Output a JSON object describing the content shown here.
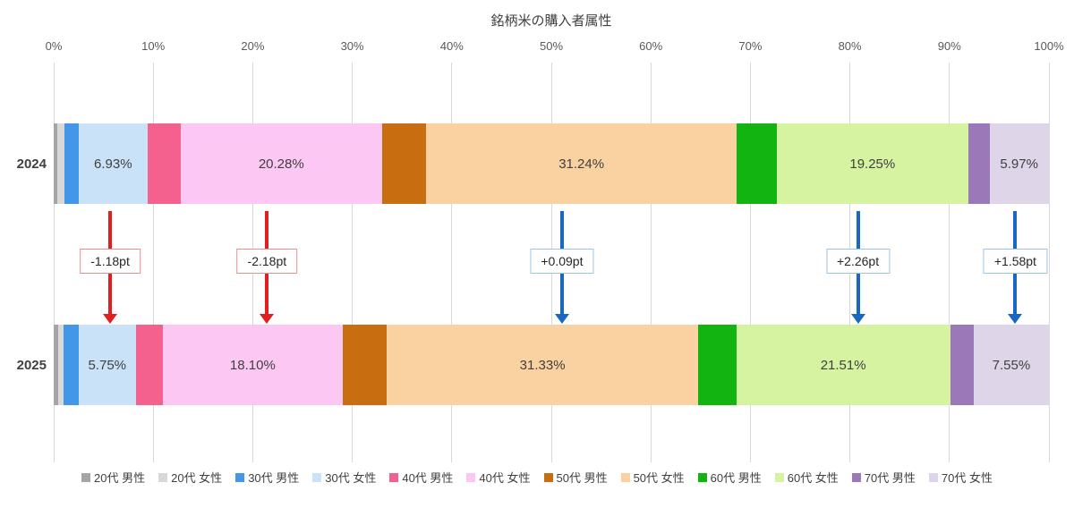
{
  "title": "銘柄米の購入者属性",
  "colors": {
    "negative_arrow": "#e02020",
    "negative_box_border": "#e89090",
    "positive_arrow": "#1867c0",
    "positive_box_border": "#9dc3e6",
    "gridline": "#d8d8d8",
    "axis_text": "#595959",
    "label_text": "#404040"
  },
  "chart_data": {
    "type": "bar",
    "orientation": "horizontal-stacked",
    "title": "銘柄米の購入者属性",
    "x_axis": {
      "min": 0,
      "max": 100,
      "ticks": [
        "0%",
        "10%",
        "20%",
        "30%",
        "40%",
        "50%",
        "60%",
        "70%",
        "80%",
        "90%",
        "100%"
      ]
    },
    "categories": [
      {
        "label": "20代 男性",
        "color": "#a5a5a5"
      },
      {
        "label": "20代 女性",
        "color": "#d8d8d8"
      },
      {
        "label": "30代 男性",
        "color": "#4497e8"
      },
      {
        "label": "30代 女性",
        "color": "#c9e2f8"
      },
      {
        "label": "40代 男性",
        "color": "#f4618e"
      },
      {
        "label": "40代 女性",
        "color": "#fcc7f2"
      },
      {
        "label": "50代 男性",
        "color": "#c86e10"
      },
      {
        "label": "50代 女性",
        "color": "#fad2a2"
      },
      {
        "label": "60代 男性",
        "color": "#12b412"
      },
      {
        "label": "60代 女性",
        "color": "#d6f3a2"
      },
      {
        "label": "70代 男性",
        "color": "#9b79b8"
      },
      {
        "label": "70代 女性",
        "color": "#ded5e9"
      }
    ],
    "series": [
      {
        "name": "2024",
        "values": [
          0.4,
          0.7,
          1.4,
          6.93,
          3.3,
          20.28,
          4.4,
          31.24,
          4.0,
          19.25,
          2.13,
          5.97
        ],
        "labels": {
          "30代 女性": "6.93%",
          "40代 女性": "20.28%",
          "50代 女性": "31.24%",
          "60代 女性": "19.25%",
          "70代 女性": "5.97%"
        }
      },
      {
        "name": "2025",
        "values": [
          0.45,
          0.55,
          1.5,
          5.75,
          2.7,
          18.1,
          4.4,
          31.33,
          3.8,
          21.51,
          2.36,
          7.55
        ],
        "labels": {
          "30代 女性": "5.75%",
          "40代 女性": "18.10%",
          "50代 女性": "31.33%",
          "60代 女性": "21.51%",
          "70代 女性": "7.55%"
        }
      }
    ],
    "annotations": [
      {
        "category": "30代 女性",
        "label": "-1.18pt",
        "type": "negative"
      },
      {
        "category": "40代 女性",
        "label": "-2.18pt",
        "type": "negative"
      },
      {
        "category": "50代 女性",
        "label": "+0.09pt",
        "type": "positive"
      },
      {
        "category": "60代 女性",
        "label": "+2.26pt",
        "type": "positive"
      },
      {
        "category": "70代 女性",
        "label": "+1.58pt",
        "type": "positive"
      }
    ],
    "legend_position": "bottom"
  }
}
